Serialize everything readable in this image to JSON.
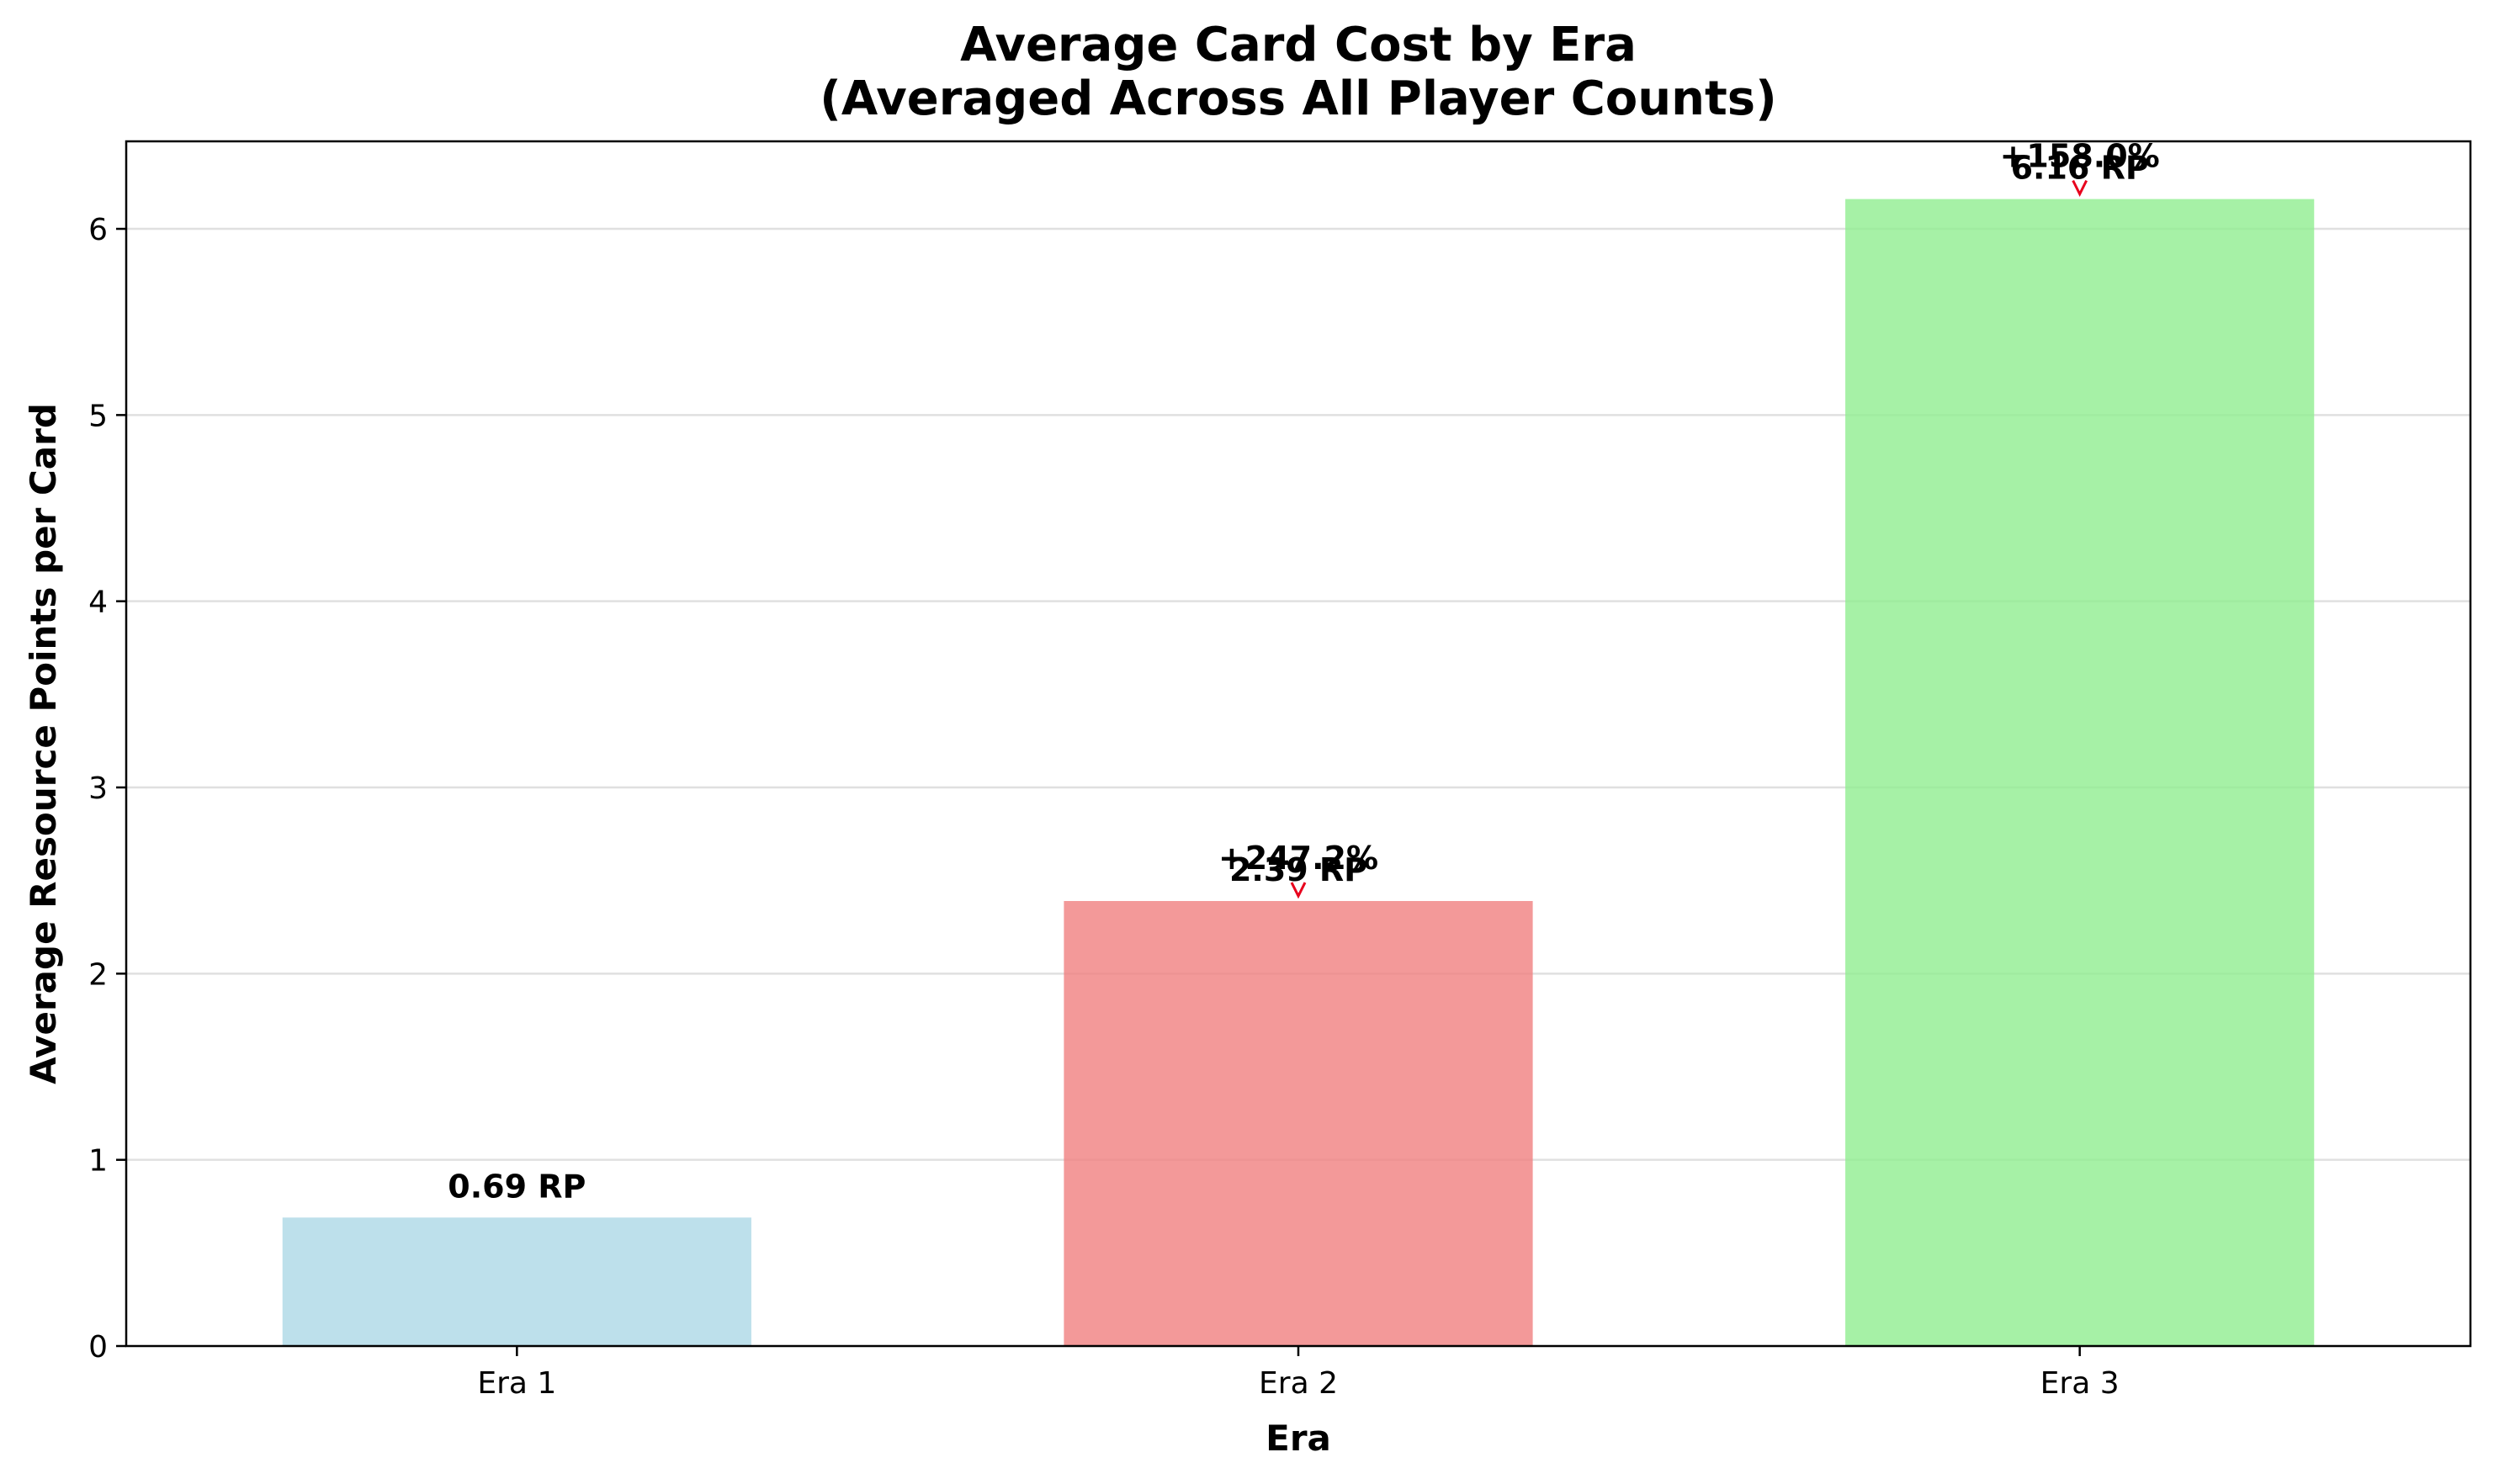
{
  "chart_data": {
    "type": "bar",
    "title": "Average Card Cost by Era\n(Averaged Across All Player Counts)",
    "title_lines": [
      "Average Card Cost by Era",
      "(Averaged Across All Player Counts)"
    ],
    "xlabel": "Era",
    "ylabel": "Average Resource Points per Card",
    "categories": [
      "Era 1",
      "Era 2",
      "Era 3"
    ],
    "values": [
      0.69,
      2.39,
      6.16
    ],
    "value_labels": [
      "0.69 RP",
      "2.39 RP",
      "6.16 RP"
    ],
    "change_labels": [
      "",
      "+247.2%",
      "+158.0%"
    ],
    "colors": [
      "#add8e6",
      "#f08080",
      "#90ee90"
    ],
    "bar_opacity": 0.8,
    "arrow_color": "#ff0000",
    "ylim": [
      0,
      6.47
    ],
    "yticks": [
      0,
      1,
      2,
      3,
      4,
      5,
      6
    ],
    "grid": "y",
    "legend": "none"
  }
}
